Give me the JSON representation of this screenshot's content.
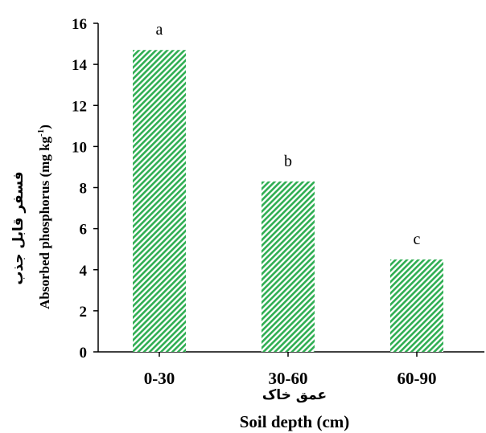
{
  "chart_data": {
    "type": "bar",
    "categories": [
      "0-30",
      "30-60",
      "60-90"
    ],
    "values": [
      14.7,
      8.3,
      4.5
    ],
    "significance_letters": [
      "a",
      "b",
      "c"
    ],
    "ylim": [
      0,
      16
    ],
    "yticks": [
      0,
      2,
      4,
      6,
      8,
      10,
      12,
      14,
      16
    ],
    "ylabel_fa": "فسفر قابل جذب",
    "ylabel_en": "Absorbed phosphorus  (mg kg",
    "ylabel_en_sup": "-1",
    "ylabel_en_close": ")",
    "xlabel_fa": "عمق خاک",
    "xlabel_en": "Soil depth (cm)",
    "bar_pattern": "diagonal-hatch",
    "colors": {
      "bar_stripe": "#2fae52",
      "bar_bg": "#ffffff",
      "axis": "#000000"
    },
    "grid": false
  }
}
